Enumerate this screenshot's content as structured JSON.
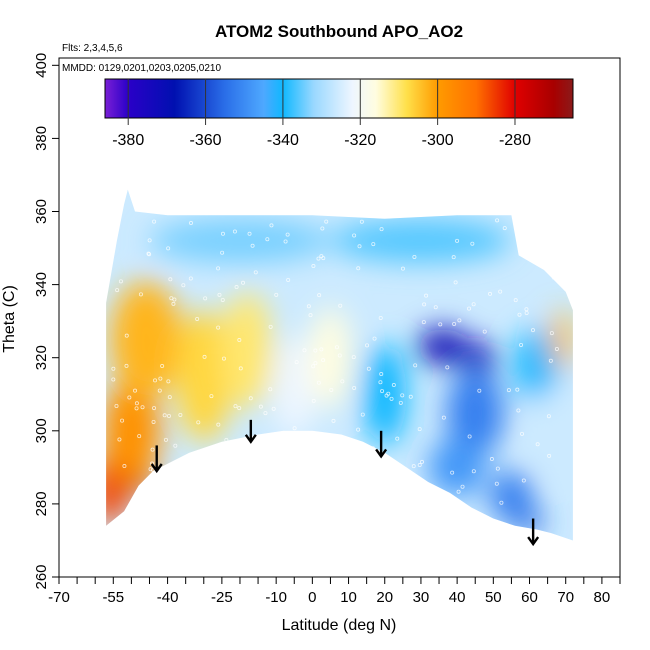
{
  "chart_data": {
    "type": "heatmap",
    "title": "ATOM2 Southbound APO_AO2",
    "notes": [
      "Flts: 2,3,4,5,6",
      "MMDD: 0129,0201,0203,0205,0210"
    ],
    "xlabel": "Latitude (deg N)",
    "ylabel": "Theta (C)",
    "xlim": [
      -70,
      85
    ],
    "ylim": [
      260,
      402
    ],
    "x_ticks_major": [
      -70,
      -55,
      -40,
      -25,
      -10,
      0,
      10,
      20,
      30,
      40,
      50,
      60,
      70,
      80
    ],
    "x_ticks_minor": [
      -65,
      -60,
      -50,
      -45,
      -35,
      -30,
      -20,
      -15,
      -5,
      5,
      15,
      25,
      35,
      45,
      55,
      65,
      75,
      85
    ],
    "y_ticks": [
      260,
      280,
      300,
      320,
      340,
      360,
      380,
      400
    ],
    "colorbar": {
      "min": -386,
      "max": -265,
      "ticks": [
        -380,
        -360,
        -340,
        -320,
        -300,
        -280
      ],
      "stops": [
        {
          "value": -386,
          "color": "#7a1fd6"
        },
        {
          "value": -380,
          "color": "#2a00c8"
        },
        {
          "value": -368,
          "color": "#0010b0"
        },
        {
          "value": -355,
          "color": "#2a6ee8"
        },
        {
          "value": -345,
          "color": "#4ea8ff"
        },
        {
          "value": -340,
          "color": "#10b8ff"
        },
        {
          "value": -332,
          "color": "#9ad8ff"
        },
        {
          "value": -322,
          "color": "#eef6ff"
        },
        {
          "value": -316,
          "color": "#fffde0"
        },
        {
          "value": -308,
          "color": "#ffe04a"
        },
        {
          "value": -300,
          "color": "#ff9b00"
        },
        {
          "value": -290,
          "color": "#ff7000"
        },
        {
          "value": -280,
          "color": "#e00000"
        },
        {
          "value": -270,
          "color": "#a80000"
        },
        {
          "value": -265,
          "color": "#8b1a1a"
        }
      ]
    },
    "field_boundary": {
      "bottom": [
        [
          -57,
          274
        ],
        [
          -52,
          278
        ],
        [
          -48,
          285
        ],
        [
          -44,
          289
        ],
        [
          -40,
          291
        ],
        [
          -34,
          294
        ],
        [
          -25,
          297
        ],
        [
          -15,
          299
        ],
        [
          -8,
          300
        ],
        [
          0,
          300
        ],
        [
          8,
          299
        ],
        [
          14,
          297
        ],
        [
          20,
          294
        ],
        [
          26,
          290
        ],
        [
          32,
          286
        ],
        [
          38,
          283
        ],
        [
          44,
          279
        ],
        [
          50,
          276
        ],
        [
          56,
          274
        ],
        [
          62,
          273
        ],
        [
          66,
          272
        ],
        [
          72,
          270
        ]
      ],
      "top": [
        [
          -57,
          335
        ],
        [
          -54,
          352
        ],
        [
          -52,
          362
        ],
        [
          -51,
          366
        ],
        [
          -49,
          360
        ],
        [
          -40,
          359
        ],
        [
          -20,
          359
        ],
        [
          0,
          359
        ],
        [
          20,
          358
        ],
        [
          40,
          359
        ],
        [
          55,
          359
        ],
        [
          57,
          348
        ],
        [
          64,
          344
        ],
        [
          70,
          338
        ],
        [
          72,
          333
        ]
      ]
    },
    "field_blobs": [
      {
        "lat": -56,
        "theta": 284,
        "value": -286,
        "rx": 5,
        "ry": 10
      },
      {
        "lat": -48,
        "theta": 287,
        "value": -277,
        "rx": 4,
        "ry": 4
      },
      {
        "lat": -50,
        "theta": 300,
        "value": -298,
        "rx": 8,
        "ry": 14
      },
      {
        "lat": -46,
        "theta": 325,
        "value": -303,
        "rx": 10,
        "ry": 16
      },
      {
        "lat": -30,
        "theta": 315,
        "value": -307,
        "rx": 8,
        "ry": 18
      },
      {
        "lat": -18,
        "theta": 322,
        "value": -310,
        "rx": 7,
        "ry": 16
      },
      {
        "lat": -5,
        "theta": 312,
        "value": -322,
        "rx": 6,
        "ry": 14
      },
      {
        "lat": 5,
        "theta": 320,
        "value": -316,
        "rx": 6,
        "ry": 14
      },
      {
        "lat": -20,
        "theta": 352,
        "value": -334,
        "rx": 25,
        "ry": 6
      },
      {
        "lat": 30,
        "theta": 352,
        "value": -336,
        "rx": 25,
        "ry": 6
      },
      {
        "lat": 20,
        "theta": 310,
        "value": -340,
        "rx": 6,
        "ry": 14
      },
      {
        "lat": 36,
        "theta": 323,
        "value": -370,
        "rx": 7,
        "ry": 5
      },
      {
        "lat": 46,
        "theta": 320,
        "value": -374,
        "rx": 5,
        "ry": 4
      },
      {
        "lat": 45,
        "theta": 305,
        "value": -352,
        "rx": 8,
        "ry": 12
      },
      {
        "lat": 40,
        "theta": 290,
        "value": -348,
        "rx": 8,
        "ry": 8
      },
      {
        "lat": 55,
        "theta": 282,
        "value": -352,
        "rx": 6,
        "ry": 7
      },
      {
        "lat": 60,
        "theta": 275,
        "value": -356,
        "rx": 4,
        "ry": 3
      },
      {
        "lat": 62,
        "theta": 318,
        "value": -340,
        "rx": 6,
        "ry": 10
      },
      {
        "lat": 66,
        "theta": 300,
        "value": -326,
        "rx": 4,
        "ry": 12
      },
      {
        "lat": 69,
        "theta": 325,
        "value": -304,
        "rx": 3,
        "ry": 8
      }
    ],
    "field_background": -326,
    "arrows": [
      {
        "lat": -43,
        "theta_top": 296,
        "theta_tip": 289
      },
      {
        "lat": -17,
        "theta_top": 303,
        "theta_tip": 297
      },
      {
        "lat": 19,
        "theta_top": 300,
        "theta_tip": 293
      },
      {
        "lat": 61,
        "theta_top": 276,
        "theta_tip": 269
      }
    ],
    "grid": false,
    "legend": "colorbar top"
  }
}
